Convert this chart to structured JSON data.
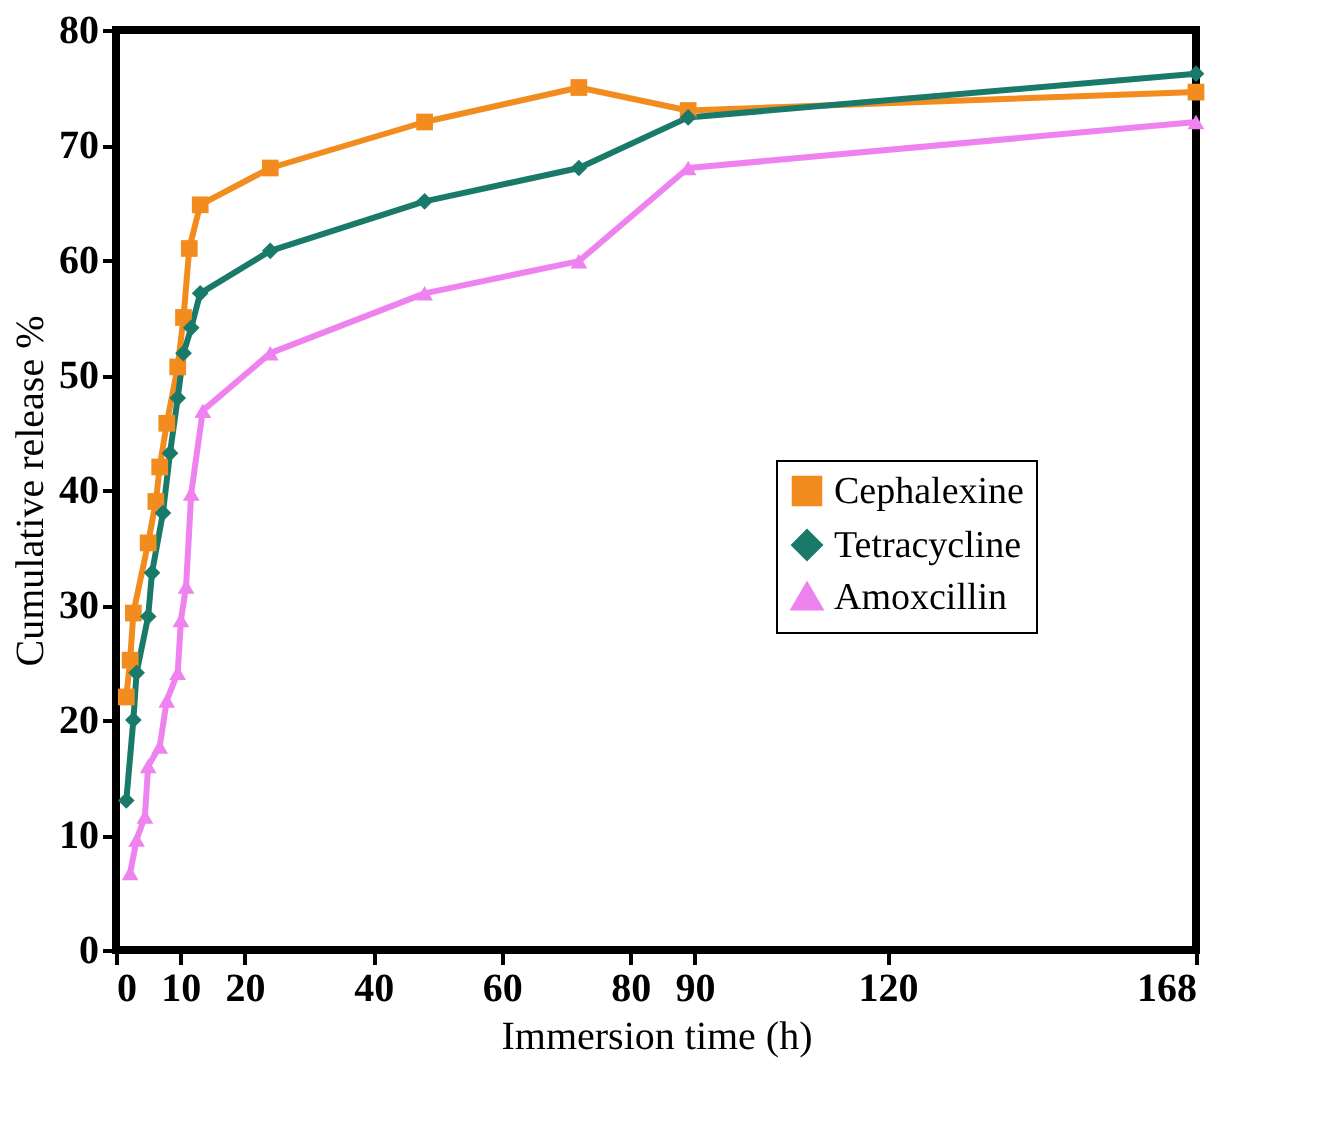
{
  "chart_data": {
    "type": "line",
    "xlabel": "Immersion time (h)",
    "ylabel": "Cumulative release %",
    "xlim": [
      0,
      168
    ],
    "xticks": [
      0,
      10,
      20,
      40,
      60,
      80,
      90,
      120,
      168
    ],
    "ylim": [
      0,
      80
    ],
    "yticks": [
      0,
      10,
      20,
      30,
      40,
      50,
      60,
      70,
      80
    ],
    "grid": false,
    "legend": "right",
    "line_style": "solid",
    "series": [
      {
        "name": "Cephalexine",
        "color": "#f28c1e",
        "marker": "square",
        "x": [
          1.6,
          2.2,
          2.7,
          5.0,
          6.2,
          6.8,
          7.9,
          9.6,
          10.5,
          11.4,
          13.1,
          24,
          48,
          72,
          89,
          168
        ],
        "values": [
          22,
          25.2,
          29.3,
          35.4,
          39,
          42,
          45.8,
          50.7,
          55,
          61,
          64.8,
          68,
          72,
          75,
          73,
          74.6
        ]
      },
      {
        "name": "Tetracycline",
        "color": "#1a7a6a",
        "marker": "diamond",
        "x": [
          1.6,
          2.7,
          3.2,
          5.0,
          5.6,
          7.3,
          8.4,
          9.6,
          10.5,
          11.7,
          13.1,
          24,
          48,
          72,
          89,
          168
        ],
        "values": [
          13,
          20,
          24.1,
          29,
          32.8,
          38,
          43.2,
          48,
          51.9,
          54.1,
          57.1,
          60.8,
          65.1,
          68,
          72.4,
          76.2
        ]
      },
      {
        "name": "Amoxcillin",
        "color": "#ee82ee",
        "marker": "triangle",
        "x": [
          2.2,
          3.2,
          4.5,
          5.0,
          6.8,
          7.9,
          9.6,
          10.1,
          10.9,
          11.7,
          13.5,
          24,
          48,
          72,
          89,
          168
        ],
        "values": [
          6.7,
          9.6,
          11.6,
          16,
          17.7,
          21.7,
          24.1,
          28.7,
          31.6,
          39.7,
          46.9,
          51.9,
          57.1,
          59.9,
          68,
          72
        ]
      }
    ]
  }
}
